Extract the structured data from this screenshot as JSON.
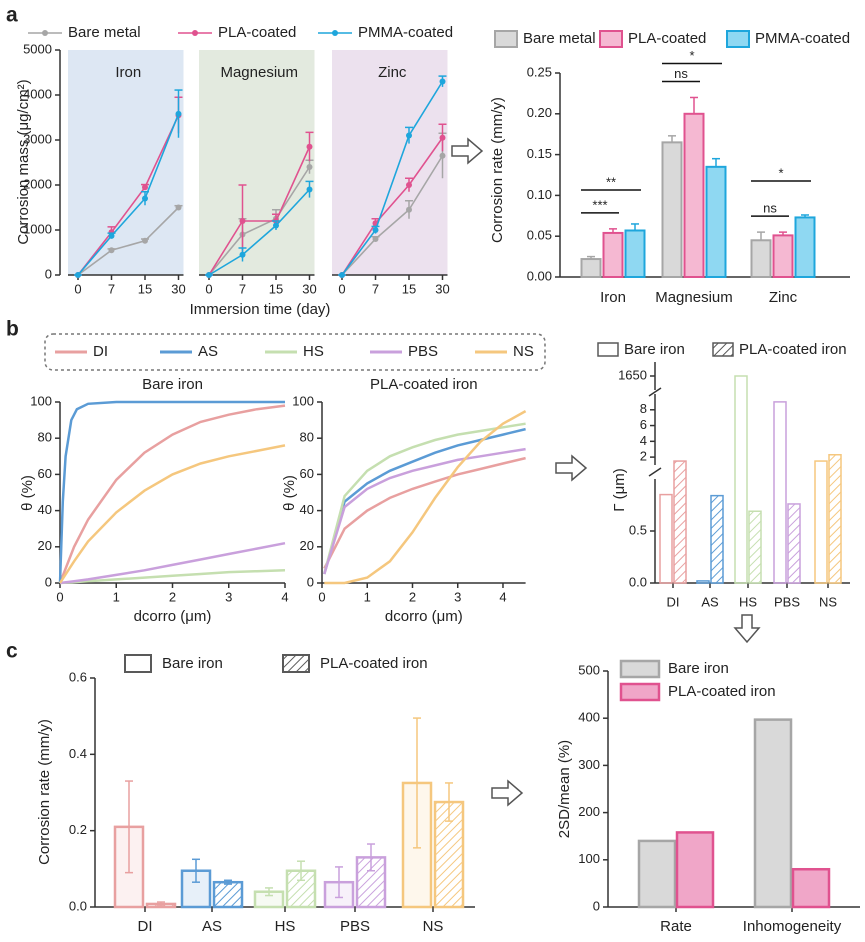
{
  "chart_data": [
    {
      "type": "line",
      "label": "a",
      "ylabel": "Corrosion mass (μg/cm²)",
      "xlabel": "Immersion time (day)",
      "ylim": [
        0,
        5000
      ],
      "yticks": [
        0,
        1000,
        2000,
        3000,
        4000,
        5000
      ],
      "series": [
        {
          "name": "Bare metal",
          "color": "#a6a6a6"
        },
        {
          "name": "PLA-coated",
          "color": "#e0528f"
        },
        {
          "name": "PMMA-coated",
          "color": "#1ea6dc"
        }
      ],
      "panels": [
        {
          "title": "Iron",
          "shade": "#dde7f3",
          "categories": [
            "0",
            "7",
            "15",
            "30"
          ],
          "lines": [
            {
              "values": [
                0,
                550,
                760,
                1500
              ],
              "errors": [
                0,
                30,
                40,
                40
              ]
            },
            {
              "values": [
                0,
                950,
                1950,
                3550
              ],
              "errors": [
                0,
                120,
                60,
                400
              ]
            },
            {
              "values": [
                0,
                870,
                1700,
                3580
              ],
              "errors": [
                0,
                60,
                150,
                530
              ]
            }
          ]
        },
        {
          "title": "Magnesium",
          "shade": "#e3eadf",
          "categories": [
            "0",
            "7",
            "15",
            "30"
          ],
          "lines": [
            {
              "values": [
                0,
                900,
                1250,
                2400
              ],
              "errors": [
                0,
                350,
                200,
                150
              ]
            },
            {
              "values": [
                0,
                1200,
                1200,
                2850
              ],
              "errors": [
                0,
                800,
                150,
                320
              ]
            },
            {
              "values": [
                0,
                450,
                1100,
                1900
              ],
              "errors": [
                0,
                150,
                100,
                180
              ]
            }
          ]
        },
        {
          "title": "Zinc",
          "shade": "#ece1ee",
          "categories": [
            "0",
            "7",
            "15",
            "30"
          ],
          "lines": [
            {
              "values": [
                0,
                800,
                1450,
                2650
              ],
              "errors": [
                0,
                50,
                200,
                500
              ]
            },
            {
              "values": [
                0,
                1150,
                2000,
                3050
              ],
              "errors": [
                0,
                100,
                150,
                300
              ]
            },
            {
              "values": [
                0,
                1000,
                3100,
                4300
              ],
              "errors": [
                0,
                80,
                180,
                120
              ]
            }
          ]
        }
      ]
    },
    {
      "type": "bar",
      "ylabel": "Corrosion rate (mm/y)",
      "categories": [
        "Iron",
        "Magnesium",
        "Zinc"
      ],
      "ylim": [
        0,
        0.25
      ],
      "yticks": [
        {
          "value": 0,
          "label": "0.00"
        },
        0.05,
        {
          "value": 0.1,
          "label": "0.10"
        },
        0.15,
        {
          "value": 0.2,
          "label": "0.20"
        },
        0.25
      ],
      "series": [
        {
          "name": "Bare metal",
          "color": "#a6a6a6",
          "fill": "#d9d9d9",
          "values": [
            0.022,
            0.165,
            0.045
          ],
          "errors": [
            0.003,
            0.008,
            0.01
          ]
        },
        {
          "name": "PLA-coated",
          "color": "#e0528f",
          "fill": "#f5b8d2",
          "values": [
            0.054,
            0.2,
            0.051
          ],
          "errors": [
            0.005,
            0.02,
            0.004
          ]
        },
        {
          "name": "PMMA-coated",
          "color": "#1ea6dc",
          "fill": "#8fd8f2",
          "values": [
            0.057,
            0.135,
            0.073
          ],
          "errors": [
            0.008,
            0.01,
            0.003
          ]
        }
      ],
      "significance": [
        [
          "***",
          "**"
        ],
        [
          "ns",
          "*"
        ],
        [
          "ns",
          "*"
        ]
      ]
    },
    {
      "type": "curves",
      "label": "b",
      "ylabel": "θ (%)",
      "xlabel": "dcorro (μm)",
      "series": [
        {
          "name": "DI",
          "color": "#e8a0a0"
        },
        {
          "name": "AS",
          "color": "#5b9bd5"
        },
        {
          "name": "HS",
          "color": "#c5dfb0"
        },
        {
          "name": "PBS",
          "color": "#c9a0dc"
        },
        {
          "name": "NS",
          "color": "#f5c77e"
        }
      ],
      "panels": [
        {
          "title": "Bare iron",
          "xlim": [
            0,
            4
          ],
          "xticks": [
            0,
            1,
            2,
            3,
            4
          ],
          "ylim": [
            0,
            100
          ],
          "yticks": [
            0,
            20,
            40,
            60,
            80,
            100
          ],
          "curves": [
            {
              "x": [
                0,
                0.25,
                0.5,
                1,
                1.5,
                2,
                2.5,
                3,
                3.5,
                4
              ],
              "values": [
                0,
                20,
                35,
                57,
                72,
                82,
                89,
                93,
                96,
                98
              ]
            },
            {
              "x": [
                0,
                0.05,
                0.1,
                0.2,
                0.3,
                0.5,
                1,
                2,
                3,
                4
              ],
              "values": [
                0,
                45,
                70,
                90,
                96,
                99,
                100,
                100,
                100,
                100
              ]
            },
            {
              "x": [
                0,
                0.25,
                0.5,
                1,
                1.5,
                2,
                2.5,
                3,
                3.5,
                4
              ],
              "values": [
                0,
                0.5,
                1,
                2,
                3,
                4,
                5,
                6,
                6.5,
                7
              ]
            },
            {
              "x": [
                0,
                0.25,
                0.5,
                1,
                1.5,
                2,
                2.5,
                3,
                3.5,
                4
              ],
              "values": [
                0,
                1,
                2,
                4.5,
                7,
                10,
                13,
                16,
                19,
                22
              ]
            },
            {
              "x": [
                0,
                0.25,
                0.5,
                1,
                1.5,
                2,
                2.5,
                3,
                3.5,
                4
              ],
              "values": [
                0,
                12,
                23,
                39,
                51,
                60,
                66,
                70,
                73,
                76
              ]
            }
          ]
        },
        {
          "title": "PLA-coated iron",
          "xlim": [
            0,
            4.5
          ],
          "xticks": [
            0,
            1,
            2,
            3,
            4
          ],
          "ylim": [
            0,
            100
          ],
          "yticks": [
            0,
            20,
            40,
            60,
            80,
            100
          ],
          "curves": [
            {
              "x": [
                0.05,
                0.5,
                1,
                1.5,
                2,
                2.5,
                3,
                3.5,
                4,
                4.5
              ],
              "values": [
                8,
                30,
                40,
                47,
                52,
                56,
                60,
                63,
                66,
                69
              ]
            },
            {
              "x": [
                0.05,
                0.5,
                1,
                1.5,
                2,
                2.5,
                3,
                3.5,
                4,
                4.5
              ],
              "values": [
                5,
                45,
                55,
                62,
                67,
                72,
                76,
                79,
                82,
                85
              ]
            },
            {
              "x": [
                0.05,
                0.5,
                1,
                1.5,
                2,
                2.5,
                3,
                3.5,
                4,
                4.5
              ],
              "values": [
                5,
                48,
                62,
                70,
                75,
                79,
                82,
                84,
                86,
                88
              ]
            },
            {
              "x": [
                0.05,
                0.5,
                1,
                1.5,
                2,
                2.5,
                3,
                3.5,
                4,
                4.5
              ],
              "values": [
                5,
                42,
                52,
                58,
                62,
                65,
                68,
                70,
                72,
                74
              ]
            },
            {
              "x": [
                0.05,
                0.5,
                1,
                1.5,
                2,
                2.5,
                3,
                3.5,
                4,
                4.5
              ],
              "values": [
                0,
                0,
                3,
                12,
                28,
                47,
                64,
                78,
                88,
                95
              ]
            }
          ]
        }
      ]
    },
    {
      "type": "broken-bar",
      "ylabel": "Γ (μm)",
      "categories": [
        "DI",
        "AS",
        "HS",
        "PBS",
        "NS"
      ],
      "colors": [
        "#e8a0a0",
        "#5b9bd5",
        "#c5dfb0",
        "#c9a0dc",
        "#f5c77e"
      ],
      "legend_color": "#595959",
      "segments": [
        {
          "ylim": [
            0,
            1
          ],
          "yticks": [
            {
              "value": 0,
              "label": "0.0"
            },
            0.5
          ]
        },
        {
          "ylim": [
            1,
            10
          ],
          "yticks": [
            2,
            4,
            6,
            8
          ]
        },
        {
          "ylim": [
            1640,
            1660
          ],
          "yticks": [
            1650
          ]
        }
      ],
      "series": [
        {
          "name": "Bare iron",
          "hatch": false,
          "values": [
            0.85,
            0.02,
            1650,
            9,
            1.5
          ]
        },
        {
          "name": "PLA-coated iron",
          "hatch": true,
          "values": [
            1.5,
            0.84,
            0.69,
            0.76,
            2.3
          ]
        }
      ]
    },
    {
      "type": "hatch-bar",
      "label": "c",
      "ylabel": "Corrosion rate (mm/y)",
      "categories": [
        "DI",
        "AS",
        "HS",
        "PBS",
        "NS"
      ],
      "colors": [
        "#e8a0a0",
        "#5b9bd5",
        "#c5dfb0",
        "#c9a0dc",
        "#f5c77e"
      ],
      "legend_color": "#595959",
      "ylim": [
        0,
        0.6
      ],
      "yticks": [
        {
          "value": 0,
          "label": "0.0"
        },
        0.2,
        0.4,
        0.6
      ],
      "series": [
        {
          "name": "Bare iron",
          "hatch": false,
          "values": [
            0.21,
            0.095,
            0.04,
            0.065,
            0.325
          ],
          "errors": [
            0.12,
            0.03,
            0.01,
            0.04,
            0.17
          ]
        },
        {
          "name": "PLA-coated iron",
          "hatch": true,
          "values": [
            0.008,
            0.065,
            0.095,
            0.13,
            0.275
          ],
          "errors": [
            0.005,
            0.005,
            0.025,
            0.035,
            0.05
          ]
        }
      ]
    },
    {
      "type": "bar",
      "ylabel": "2SD/mean (%)",
      "categories": [
        "Rate",
        "Inhomogeneity"
      ],
      "ylim": [
        0,
        500
      ],
      "yticks": [
        0,
        100,
        200,
        300,
        400,
        500
      ],
      "series": [
        {
          "name": "Bare iron",
          "color": "#a6a6a6",
          "fill": "#d9d9d9",
          "values": [
            140,
            397
          ]
        },
        {
          "name": "PLA-coated iron",
          "color": "#e0528f",
          "fill": "#f0a6c8",
          "values": [
            158,
            80
          ]
        }
      ]
    }
  ]
}
